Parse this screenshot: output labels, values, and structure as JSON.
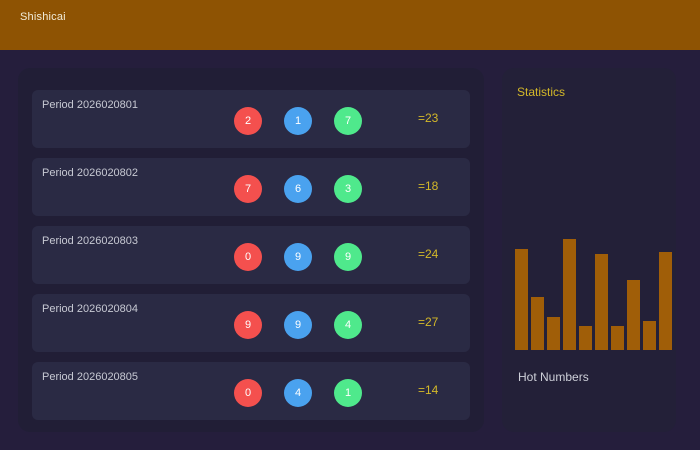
{
  "header": {
    "title": "Shishicai"
  },
  "colors": {
    "topbar": "#8e5303",
    "page_bg": "#251e3c",
    "left_panel_bg": "#211e36",
    "row_card_bg": "#2a2a44",
    "right_panel_bg": "#232038",
    "gold_text": "#d3b829",
    "period_text": "#c7c9d3",
    "ball_red": "#f4504e",
    "ball_blue": "#4aa2ef",
    "ball_green": "#4fe98c",
    "bar": "#a05e08"
  },
  "results": {
    "rows": [
      {
        "period_label": "Period 2026020801",
        "balls": [
          {
            "value": "2",
            "color": "red"
          },
          {
            "value": "1",
            "color": "blue"
          },
          {
            "value": "7",
            "color": "green"
          }
        ],
        "sum_label": "=23"
      },
      {
        "period_label": "Period 2026020802",
        "balls": [
          {
            "value": "7",
            "color": "red"
          },
          {
            "value": "6",
            "color": "blue"
          },
          {
            "value": "3",
            "color": "green"
          }
        ],
        "sum_label": "=18"
      },
      {
        "period_label": "Period 2026020803",
        "balls": [
          {
            "value": "0",
            "color": "red"
          },
          {
            "value": "9",
            "color": "blue"
          },
          {
            "value": "9",
            "color": "green"
          }
        ],
        "sum_label": "=24"
      },
      {
        "period_label": "Period 2026020804",
        "balls": [
          {
            "value": "9",
            "color": "red"
          },
          {
            "value": "9",
            "color": "blue"
          },
          {
            "value": "4",
            "color": "green"
          }
        ],
        "sum_label": "=27"
      },
      {
        "period_label": "Period 2026020805",
        "balls": [
          {
            "value": "0",
            "color": "red"
          },
          {
            "value": "4",
            "color": "blue"
          },
          {
            "value": "1",
            "color": "green"
          }
        ],
        "sum_label": "=14"
      }
    ]
  },
  "statistics": {
    "title": "Statistics",
    "footer_label": "Hot Numbers"
  },
  "chart_data": {
    "type": "bar",
    "title": "Statistics",
    "caption": "Hot Numbers",
    "categories": [
      "",
      "",
      "",
      "",
      "",
      "",
      "",
      "",
      "",
      ""
    ],
    "values": [
      101,
      53,
      33,
      111,
      24,
      96,
      24,
      70,
      29,
      98
    ],
    "value_note": "bar heights in screen pixels; chart has no visible axes, ticks or data labels",
    "xlabel": "",
    "ylabel": "",
    "ylim": [
      0,
      115
    ],
    "grid": false,
    "legend": false,
    "bar_color": "#a05e08"
  }
}
